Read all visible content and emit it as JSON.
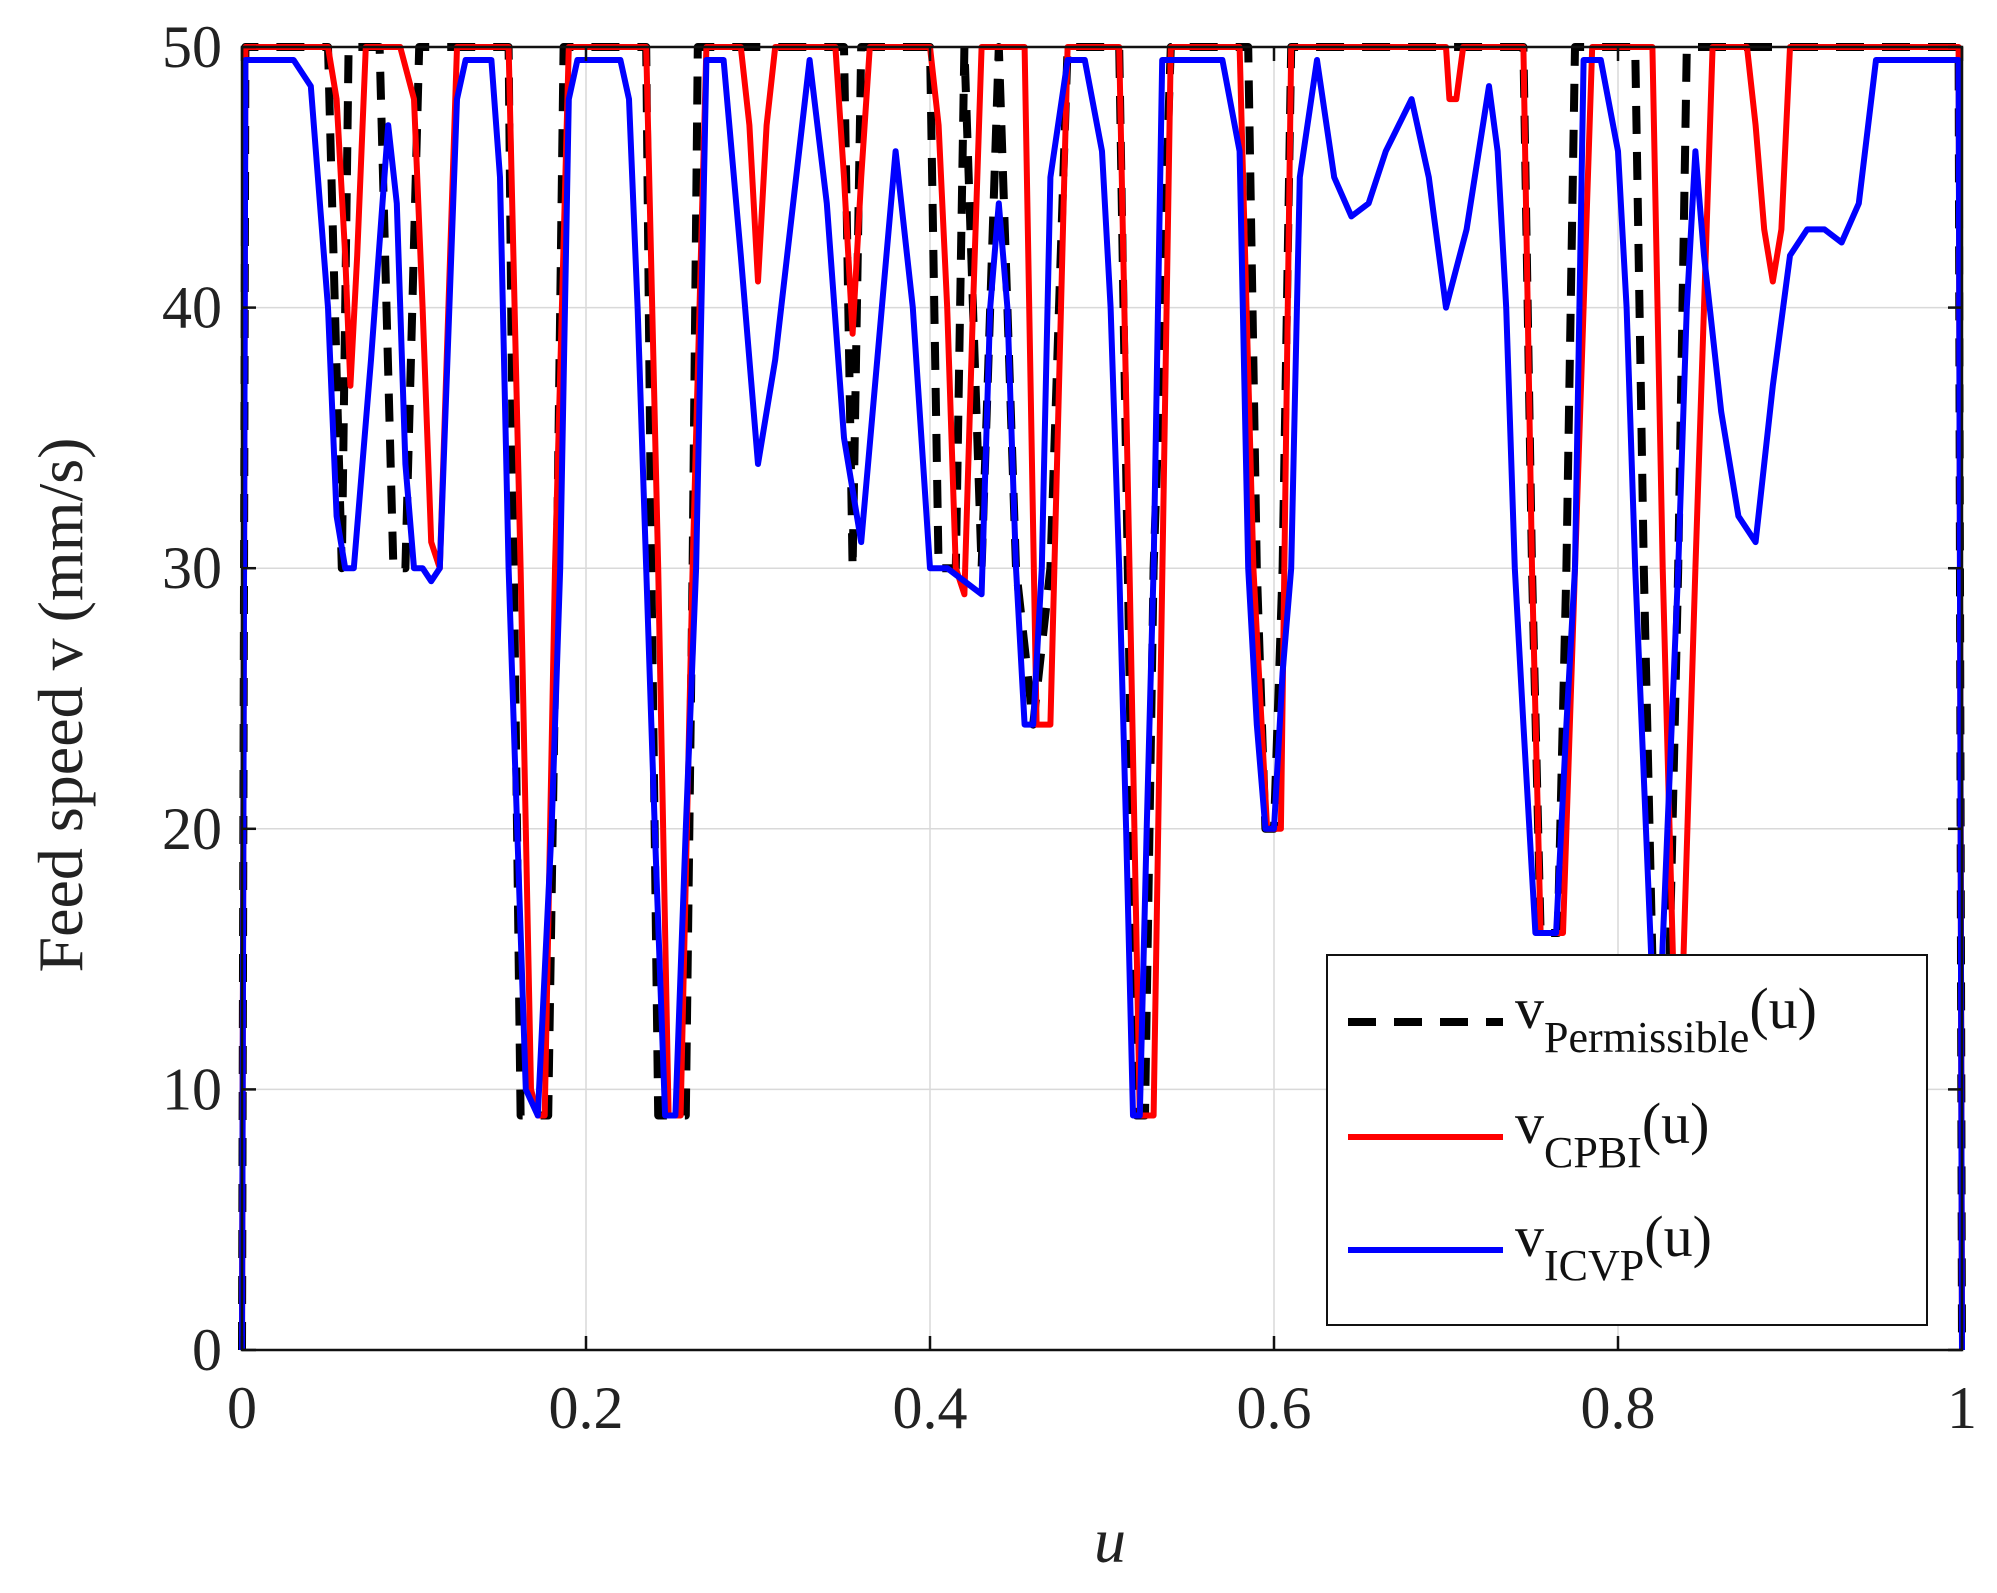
{
  "chart_data": {
    "type": "line",
    "title": "",
    "xlabel": "u",
    "ylabel": "Feed speed v (mm/s)",
    "xlim": [
      0,
      1
    ],
    "ylim": [
      0,
      50
    ],
    "x_ticks": [
      0,
      0.2,
      0.4,
      0.6,
      0.8,
      1
    ],
    "x_tick_labels": [
      "0",
      "0.2",
      "0.4",
      "0.6",
      "0.8",
      "1"
    ],
    "y_ticks": [
      0,
      10,
      20,
      30,
      40,
      50
    ],
    "y_tick_labels": [
      "0",
      "10",
      "20",
      "30",
      "40",
      "50"
    ],
    "grid": true,
    "legend_position": "bottom-right",
    "series": [
      {
        "name": "v_Permissible(u)",
        "legend_main": "v",
        "legend_sub": "Permissible",
        "legend_tail": "(u)",
        "color": "#000000",
        "style": "dashed",
        "x": [
          0,
          0.002,
          0.05,
          0.058,
          0.062,
          0.08,
          0.088,
          0.095,
          0.103,
          0.125,
          0.133,
          0.155,
          0.158,
          0.162,
          0.17,
          0.178,
          0.183,
          0.187,
          0.19,
          0.235,
          0.238,
          0.242,
          0.25,
          0.258,
          0.262,
          0.265,
          0.27,
          0.28,
          0.29,
          0.3,
          0.31,
          0.32,
          0.35,
          0.355,
          0.36,
          0.37,
          0.4,
          0.405,
          0.41,
          0.415,
          0.42,
          0.43,
          0.44,
          0.45,
          0.46,
          0.47,
          0.48,
          0.5,
          0.51,
          0.515,
          0.52,
          0.525,
          0.53,
          0.54,
          0.565,
          0.575,
          0.585,
          0.59,
          0.595,
          0.6,
          0.605,
          0.61,
          0.62,
          0.7,
          0.745,
          0.75,
          0.755,
          0.76,
          0.765,
          0.77,
          0.775,
          0.8,
          0.81,
          0.815,
          0.82,
          0.825,
          0.83,
          0.835,
          0.84,
          0.85,
          0.998,
          1
        ],
        "y": [
          0,
          50,
          50,
          30,
          50,
          50,
          30,
          30,
          50,
          50,
          50,
          50,
          30,
          9,
          9,
          9,
          30,
          50,
          50,
          50,
          30,
          9,
          9,
          9,
          30,
          50,
          50,
          50,
          50,
          50,
          50,
          50,
          50,
          30,
          50,
          50,
          50,
          30,
          30,
          30,
          50,
          30,
          50,
          30,
          24,
          30,
          50,
          50,
          50,
          30,
          9,
          9,
          30,
          50,
          50,
          50,
          50,
          30,
          20,
          20,
          30,
          50,
          50,
          50,
          50,
          30,
          16,
          16,
          16,
          30,
          50,
          50,
          50,
          30,
          15,
          15,
          15,
          30,
          50,
          50,
          50,
          0
        ]
      },
      {
        "name": "v_CPBI(u)",
        "legend_main": "v",
        "legend_sub": "CPBI",
        "legend_tail": "(u)",
        "color": "#ff0000",
        "style": "solid",
        "x": [
          0,
          0.002,
          0.05,
          0.055,
          0.06,
          0.063,
          0.067,
          0.072,
          0.08,
          0.092,
          0.1,
          0.105,
          0.11,
          0.115,
          0.12,
          0.125,
          0.135,
          0.155,
          0.162,
          0.168,
          0.172,
          0.176,
          0.182,
          0.19,
          0.2,
          0.22,
          0.235,
          0.242,
          0.248,
          0.255,
          0.262,
          0.27,
          0.29,
          0.295,
          0.3,
          0.305,
          0.31,
          0.345,
          0.35,
          0.355,
          0.36,
          0.365,
          0.4,
          0.405,
          0.41,
          0.415,
          0.42,
          0.425,
          0.43,
          0.44,
          0.455,
          0.462,
          0.47,
          0.48,
          0.51,
          0.516,
          0.522,
          0.53,
          0.54,
          0.58,
          0.588,
          0.596,
          0.604,
          0.61,
          0.7,
          0.702,
          0.706,
          0.71,
          0.745,
          0.75,
          0.755,
          0.762,
          0.768,
          0.775,
          0.785,
          0.8,
          0.82,
          0.826,
          0.832,
          0.838,
          0.845,
          0.855,
          0.875,
          0.88,
          0.885,
          0.89,
          0.895,
          0.9,
          0.91,
          0.998,
          1
        ],
        "y": [
          0,
          50,
          50,
          48,
          42,
          37,
          42,
          50,
          50,
          50,
          48,
          40,
          31,
          30,
          40,
          50,
          50,
          50,
          30,
          10,
          9,
          9,
          30,
          50,
          50,
          50,
          50,
          30,
          9,
          9,
          30,
          50,
          50,
          47,
          41,
          47,
          50,
          50,
          45,
          39,
          45,
          50,
          50,
          47,
          40,
          30,
          29,
          40,
          50,
          50,
          50,
          24,
          24,
          50,
          50,
          30,
          9,
          9,
          50,
          50,
          30,
          20,
          20,
          50,
          50,
          48,
          48,
          50,
          50,
          30,
          16,
          16,
          16,
          30,
          50,
          50,
          50,
          30,
          15,
          15,
          30,
          50,
          50,
          47,
          43,
          41,
          43,
          50,
          50,
          50,
          0
        ]
      },
      {
        "name": "v_ICVP(u)",
        "legend_main": "v",
        "legend_sub": "ICVP",
        "legend_tail": "(u)",
        "color": "#0000ff",
        "style": "solid",
        "x": [
          0,
          0.002,
          0.03,
          0.04,
          0.05,
          0.055,
          0.06,
          0.065,
          0.075,
          0.085,
          0.09,
          0.095,
          0.1,
          0.105,
          0.11,
          0.115,
          0.125,
          0.13,
          0.145,
          0.15,
          0.155,
          0.16,
          0.165,
          0.172,
          0.18,
          0.185,
          0.19,
          0.195,
          0.2,
          0.22,
          0.225,
          0.23,
          0.235,
          0.24,
          0.246,
          0.252,
          0.258,
          0.264,
          0.27,
          0.28,
          0.29,
          0.3,
          0.31,
          0.33,
          0.34,
          0.35,
          0.36,
          0.38,
          0.39,
          0.4,
          0.41,
          0.42,
          0.43,
          0.435,
          0.44,
          0.445,
          0.45,
          0.455,
          0.46,
          0.465,
          0.47,
          0.48,
          0.49,
          0.5,
          0.505,
          0.51,
          0.514,
          0.518,
          0.522,
          0.526,
          0.53,
          0.535,
          0.545,
          0.57,
          0.58,
          0.585,
          0.59,
          0.595,
          0.6,
          0.605,
          0.61,
          0.615,
          0.625,
          0.635,
          0.645,
          0.655,
          0.665,
          0.68,
          0.69,
          0.7,
          0.712,
          0.725,
          0.73,
          0.735,
          0.74,
          0.745,
          0.752,
          0.758,
          0.764,
          0.77,
          0.775,
          0.78,
          0.79,
          0.8,
          0.805,
          0.81,
          0.815,
          0.82,
          0.825,
          0.83,
          0.835,
          0.84,
          0.845,
          0.85,
          0.86,
          0.87,
          0.88,
          0.89,
          0.9,
          0.91,
          0.92,
          0.93,
          0.94,
          0.95,
          0.96,
          0.97,
          0.998,
          1
        ],
        "y": [
          0,
          49.5,
          49.5,
          48.5,
          40,
          32,
          30,
          30,
          38,
          47,
          44,
          34,
          30,
          30,
          29.5,
          30,
          48,
          49.5,
          49.5,
          45,
          30,
          20,
          10,
          9,
          20,
          30,
          48,
          49.5,
          49.5,
          49.5,
          48,
          40,
          30,
          20,
          9,
          9,
          20,
          30,
          49.5,
          49.5,
          42,
          34,
          38,
          49.5,
          44,
          35,
          31,
          46,
          40,
          30,
          30,
          29.5,
          29,
          40,
          44,
          40,
          30,
          24,
          24,
          30,
          45,
          49.5,
          49.5,
          46,
          40,
          30,
          20,
          9,
          9,
          20,
          30,
          49.5,
          49.5,
          49.5,
          46,
          30,
          24,
          20,
          20,
          26,
          30,
          45,
          49.5,
          45,
          43.5,
          44,
          46,
          48,
          45,
          40,
          43,
          48.5,
          46,
          40,
          30,
          24,
          16,
          16,
          16,
          24,
          30,
          49.5,
          49.5,
          46,
          40,
          30,
          22,
          14,
          14,
          22,
          30,
          40,
          46,
          42,
          36,
          32,
          31,
          37,
          42,
          43,
          43,
          42.5,
          44,
          49.5,
          49.5,
          49.5,
          49.5,
          0
        ]
      }
    ]
  }
}
